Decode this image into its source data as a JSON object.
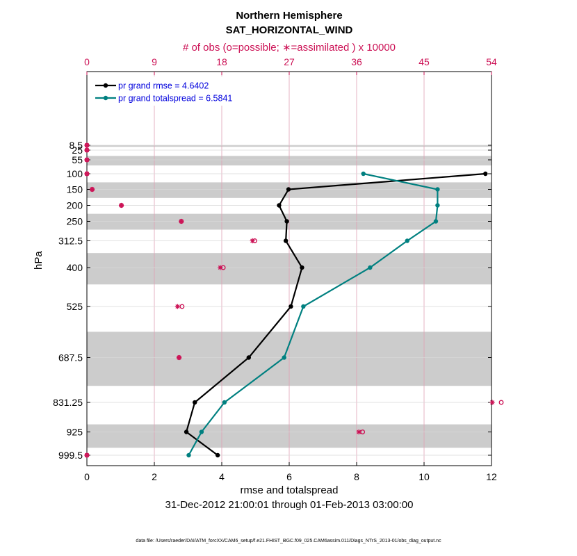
{
  "chart_data": {
    "type": "line",
    "title": "Northern Hemisphere",
    "subtitle": "SAT_HORIZONTAL_WIND",
    "top_axis_label": "# of obs (o=possible; ∗=assimilated ) x 10000",
    "xlabel": "rmse and totalspread",
    "ylabel": "hPa",
    "date_range": "31-Dec-2012 21:00:01 through 01-Feb-2013 03:00:00",
    "footer": "data file: /Users/raeder/DAI/ATM_forcXX/CAM6_setup/f.e21.FHIST_BGC.f09_025.CAM6assim.011/Diags_NTrS_2013-01/obs_diag_output.nc",
    "xlim": [
      0,
      12
    ],
    "x_ticks": [
      "0",
      "2",
      "4",
      "6",
      "8",
      "10",
      "12"
    ],
    "top_xlim": [
      0,
      54
    ],
    "top_ticks": [
      "0",
      "9",
      "18",
      "27",
      "36",
      "45",
      "54"
    ],
    "pressure_levels": [
      8.5,
      25,
      55,
      100,
      150,
      200,
      250,
      312.5,
      400,
      525,
      687.5,
      831.25,
      925,
      999.5
    ],
    "y_tick_labels": [
      "8.5",
      "25",
      "55",
      "100",
      "150",
      "200",
      "250",
      "312.5",
      "400",
      "525",
      "687.5",
      "831.25",
      "925",
      "999.5"
    ],
    "grey_bands": [
      [
        6,
        12
      ],
      [
        40,
        70
      ],
      [
        125,
        175
      ],
      [
        225,
        275
      ],
      [
        350,
        450
      ],
      [
        600,
        775
      ],
      [
        900,
        975
      ]
    ],
    "legend": [
      {
        "label": "pr grand rmse = 4.6402",
        "color": "#000000"
      },
      {
        "label": "pr grand totalspread = 6.5841",
        "color": "#008080"
      }
    ],
    "series": [
      {
        "name": "rmse",
        "color": "#000000",
        "levels": [
          100,
          150,
          200,
          250,
          312.5,
          400,
          525,
          687.5,
          831.25,
          925,
          999.5
        ],
        "values": [
          11.82,
          5.98,
          5.7,
          5.93,
          5.9,
          6.38,
          6.05,
          4.8,
          3.2,
          2.95,
          3.88
        ]
      },
      {
        "name": "totalspread",
        "color": "#008080",
        "levels": [
          100,
          150,
          200,
          250,
          312.5,
          400,
          525,
          687.5,
          831.25,
          925,
          999.5
        ],
        "values": [
          8.2,
          10.4,
          10.4,
          10.35,
          9.5,
          8.4,
          6.42,
          5.85,
          4.08,
          3.4,
          3.02
        ]
      }
    ],
    "obs_counts": {
      "unit": "x 10000",
      "levels": [
        8.5,
        25,
        55,
        100,
        150,
        200,
        250,
        312.5,
        400,
        525,
        687.5,
        831.25,
        925,
        999.5
      ],
      "possible": [
        0,
        0,
        0,
        0,
        0.7,
        4.6,
        12.6,
        22.4,
        18.2,
        12.7,
        12.3,
        55.3,
        36.8,
        0
      ],
      "assimilated": [
        0,
        0,
        0,
        0,
        0.7,
        4.6,
        12.6,
        22.1,
        17.8,
        12.1,
        12.3,
        54.1,
        36.3,
        0
      ]
    }
  }
}
